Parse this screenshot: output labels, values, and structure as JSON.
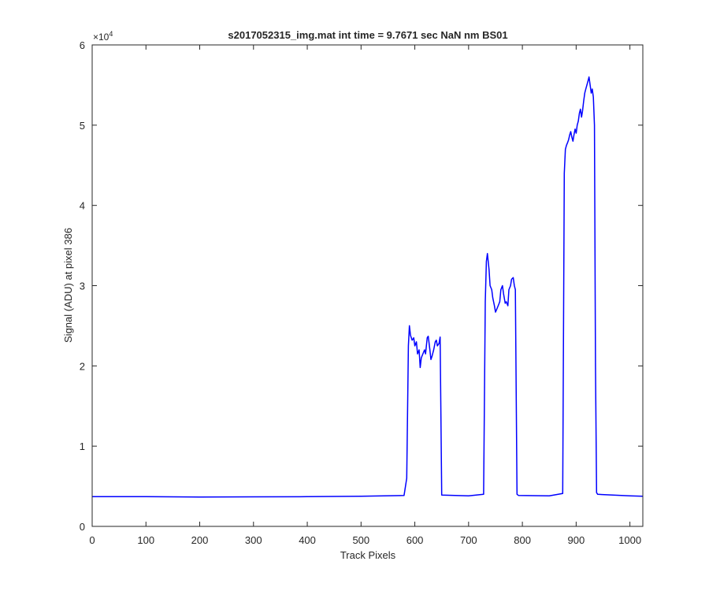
{
  "chart_data": {
    "type": "line",
    "title": "s2017052315_img.mat int time = 9.7671 sec  NaN nm BS01",
    "xlabel": "Track Pixels",
    "ylabel": "Signal (ADU) at pixel 386",
    "xlim": [
      0,
      1024
    ],
    "ylim": [
      0,
      60000
    ],
    "xticks": [
      0,
      100,
      200,
      300,
      400,
      500,
      600,
      700,
      800,
      900,
      1000
    ],
    "yticks": [
      0,
      1,
      2,
      3,
      4,
      5,
      6
    ],
    "y_exponent_label": "×10",
    "y_exponent_power": "4",
    "grid": false,
    "line_color": "#0000ff",
    "series": [
      {
        "x": [
          0,
          100,
          200,
          300,
          400,
          500,
          580,
          585,
          588,
          590,
          592,
          595,
          598,
          600,
          603,
          605,
          608,
          610,
          612,
          615,
          618,
          620,
          623,
          625,
          628,
          630,
          632,
          635,
          638,
          640,
          642,
          645,
          647,
          650,
          700,
          728,
          731,
          733,
          735,
          738,
          740,
          743,
          745,
          748,
          750,
          752,
          755,
          758,
          760,
          763,
          765,
          768,
          770,
          773,
          775,
          778,
          780,
          783,
          785,
          787,
          790,
          793,
          850,
          875,
          878,
          880,
          882,
          884,
          886,
          888,
          890,
          892,
          894,
          896,
          898,
          900,
          902,
          904,
          906,
          908,
          910,
          912,
          914,
          916,
          918,
          920,
          922,
          924,
          926,
          928,
          930,
          932,
          934,
          936,
          938,
          940,
          1000,
          1024
        ],
        "y": [
          3700,
          3700,
          3650,
          3680,
          3700,
          3750,
          3850,
          6000,
          22500,
          25000,
          23800,
          23200,
          23500,
          22500,
          23000,
          21500,
          22000,
          19800,
          21000,
          21500,
          22000,
          21500,
          23500,
          23700,
          22000,
          20800,
          21200,
          22000,
          23000,
          23200,
          22500,
          22800,
          23600,
          3900,
          3800,
          4000,
          28000,
          33000,
          34000,
          32000,
          30000,
          29500,
          28500,
          27500,
          26700,
          27000,
          27500,
          28000,
          29500,
          30000,
          29000,
          27800,
          28000,
          27500,
          29500,
          30000,
          30800,
          31000,
          30000,
          29500,
          4000,
          3850,
          3800,
          4100,
          44000,
          47000,
          47500,
          47800,
          48200,
          48800,
          49200,
          48500,
          48000,
          48800,
          49500,
          49000,
          50000,
          50500,
          51500,
          52000,
          51000,
          51800,
          53000,
          54000,
          54500,
          55000,
          55500,
          56000,
          55000,
          54000,
          54500,
          53500,
          50000,
          20000,
          4200,
          4000,
          3800,
          3750
        ]
      }
    ]
  }
}
